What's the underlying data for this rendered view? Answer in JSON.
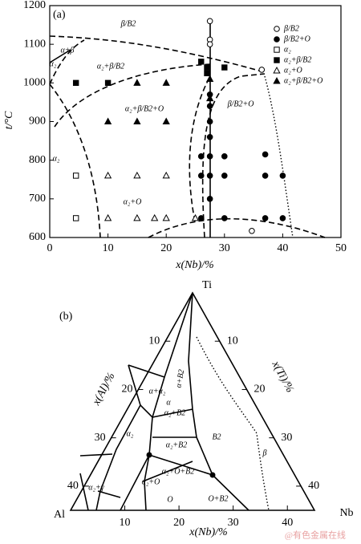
{
  "chart_data": [
    {
      "type": "scatter",
      "panel_label": "(a)",
      "x_label": "x(Nb)/%",
      "y_label": "t/°C",
      "xlim": [
        0,
        50
      ],
      "ylim": [
        600,
        1200
      ],
      "xticks": [
        0,
        10,
        20,
        30,
        40,
        50
      ],
      "yticks": [
        600,
        700,
        800,
        900,
        1000,
        1100,
        1200
      ],
      "color": "#000000",
      "series": [
        {
          "name": "β/B2",
          "marker": "circle",
          "filled": false,
          "x": [
            27.5,
            27.5,
            27.5,
            36.4,
            34.7
          ],
          "values": [
            1160,
            1112,
            1100,
            1034,
            617
          ]
        },
        {
          "name": "β/B2+O",
          "marker": "circle",
          "filled": true,
          "x": [
            27.5,
            27.5,
            27.5,
            27.5,
            27.5,
            27.5,
            27.5,
            26,
            26,
            26,
            30,
            30,
            30,
            37,
            37,
            37,
            40,
            40
          ],
          "values": [
            970,
            940,
            900,
            860,
            810,
            760,
            700,
            810,
            760,
            650,
            810,
            760,
            650,
            815,
            760,
            650,
            760,
            650
          ]
        },
        {
          "name": "α₂",
          "marker": "square",
          "filled": false,
          "x": [
            4.5,
            4.5
          ],
          "values": [
            760,
            650
          ]
        },
        {
          "name": "α₂+β/B2",
          "marker": "square",
          "filled": true,
          "x": [
            4.5,
            10,
            26,
            27,
            27,
            30
          ],
          "values": [
            1000,
            1000,
            1055,
            1040,
            1025,
            1040
          ]
        },
        {
          "name": "α₂+O",
          "marker": "triangle",
          "filled": false,
          "x": [
            10,
            15,
            20,
            10,
            15,
            18,
            20,
            25
          ],
          "values": [
            760,
            760,
            760,
            650,
            650,
            650,
            650,
            650
          ]
        },
        {
          "name": "α₂+β/B2+O",
          "marker": "triangle",
          "filled": true,
          "x": [
            10,
            15,
            20,
            15,
            20,
            27.5,
            27.5
          ],
          "values": [
            900,
            900,
            900,
            1000,
            1000,
            1010,
            960
          ]
        }
      ],
      "annotations": [
        "β/B2",
        "α+β",
        "α₂",
        "α₂+β/B2",
        "α₂+β/B2+O",
        "β/B2+O",
        "α₂",
        "α₂+O"
      ]
    },
    {
      "type": "ternary",
      "panel_label": "(b)",
      "lim": [
        0,
        45
      ],
      "vertices": [
        "Ti",
        "Al",
        "Nb"
      ],
      "left_label": "x(Al)/%",
      "right_label": "x(Ti)/%",
      "bottom_label": "x(Nb)/%",
      "left_ticks": [
        10,
        20,
        30,
        40
      ],
      "right_ticks": [
        10,
        20,
        30,
        40
      ],
      "bottom_ticks": [
        10,
        20,
        30,
        40
      ],
      "annotations": [
        "α+B2",
        "α+α₂",
        "α",
        "α₂+B2",
        "α₂",
        "α₂+B2",
        "B2",
        "β",
        "α₂+O+B2",
        "α₂+O",
        "α₂+γ",
        "O",
        "O+B2"
      ]
    }
  ],
  "watermark": "@有色金属在线"
}
